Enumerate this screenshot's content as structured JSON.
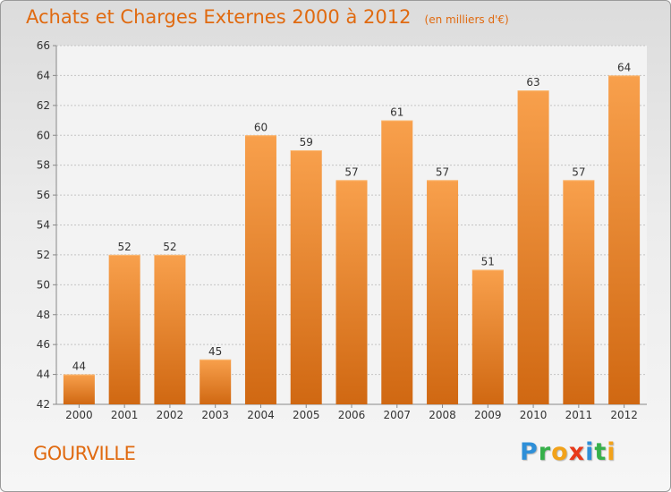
{
  "colors": {
    "accent": "#e06a10",
    "bar_top": "#f8a04c",
    "bar_bottom": "#d06812",
    "grid": "#c4c4c4",
    "axis_text": "#333333"
  },
  "logo": {
    "letters": [
      {
        "char": "P",
        "color": "#2e8fd8"
      },
      {
        "char": "r",
        "color": "#36b04a"
      },
      {
        "char": "o",
        "color": "#f2a21a"
      },
      {
        "char": "x",
        "color": "#e8391a"
      },
      {
        "char": "i",
        "color": "#2e8fd8"
      },
      {
        "char": "t",
        "color": "#36b04a"
      },
      {
        "char": "i",
        "color": "#f2a21a"
      }
    ]
  },
  "chart_data": {
    "type": "bar",
    "title": "Achats et Charges Externes 2000 à 2012",
    "subtitle": "(en milliers d'€)",
    "location": "GOURVILLE",
    "categories": [
      "2000",
      "2001",
      "2002",
      "2003",
      "2004",
      "2005",
      "2006",
      "2007",
      "2008",
      "2009",
      "2010",
      "2011",
      "2012"
    ],
    "values": [
      44,
      52,
      52,
      45,
      60,
      59,
      57,
      61,
      57,
      51,
      63,
      57,
      64
    ],
    "ylim": [
      42,
      66
    ],
    "yticks": [
      42,
      44,
      46,
      48,
      50,
      52,
      54,
      56,
      58,
      60,
      62,
      64,
      66
    ],
    "grid": true,
    "legend": "none",
    "xlabel": "",
    "ylabel": ""
  }
}
